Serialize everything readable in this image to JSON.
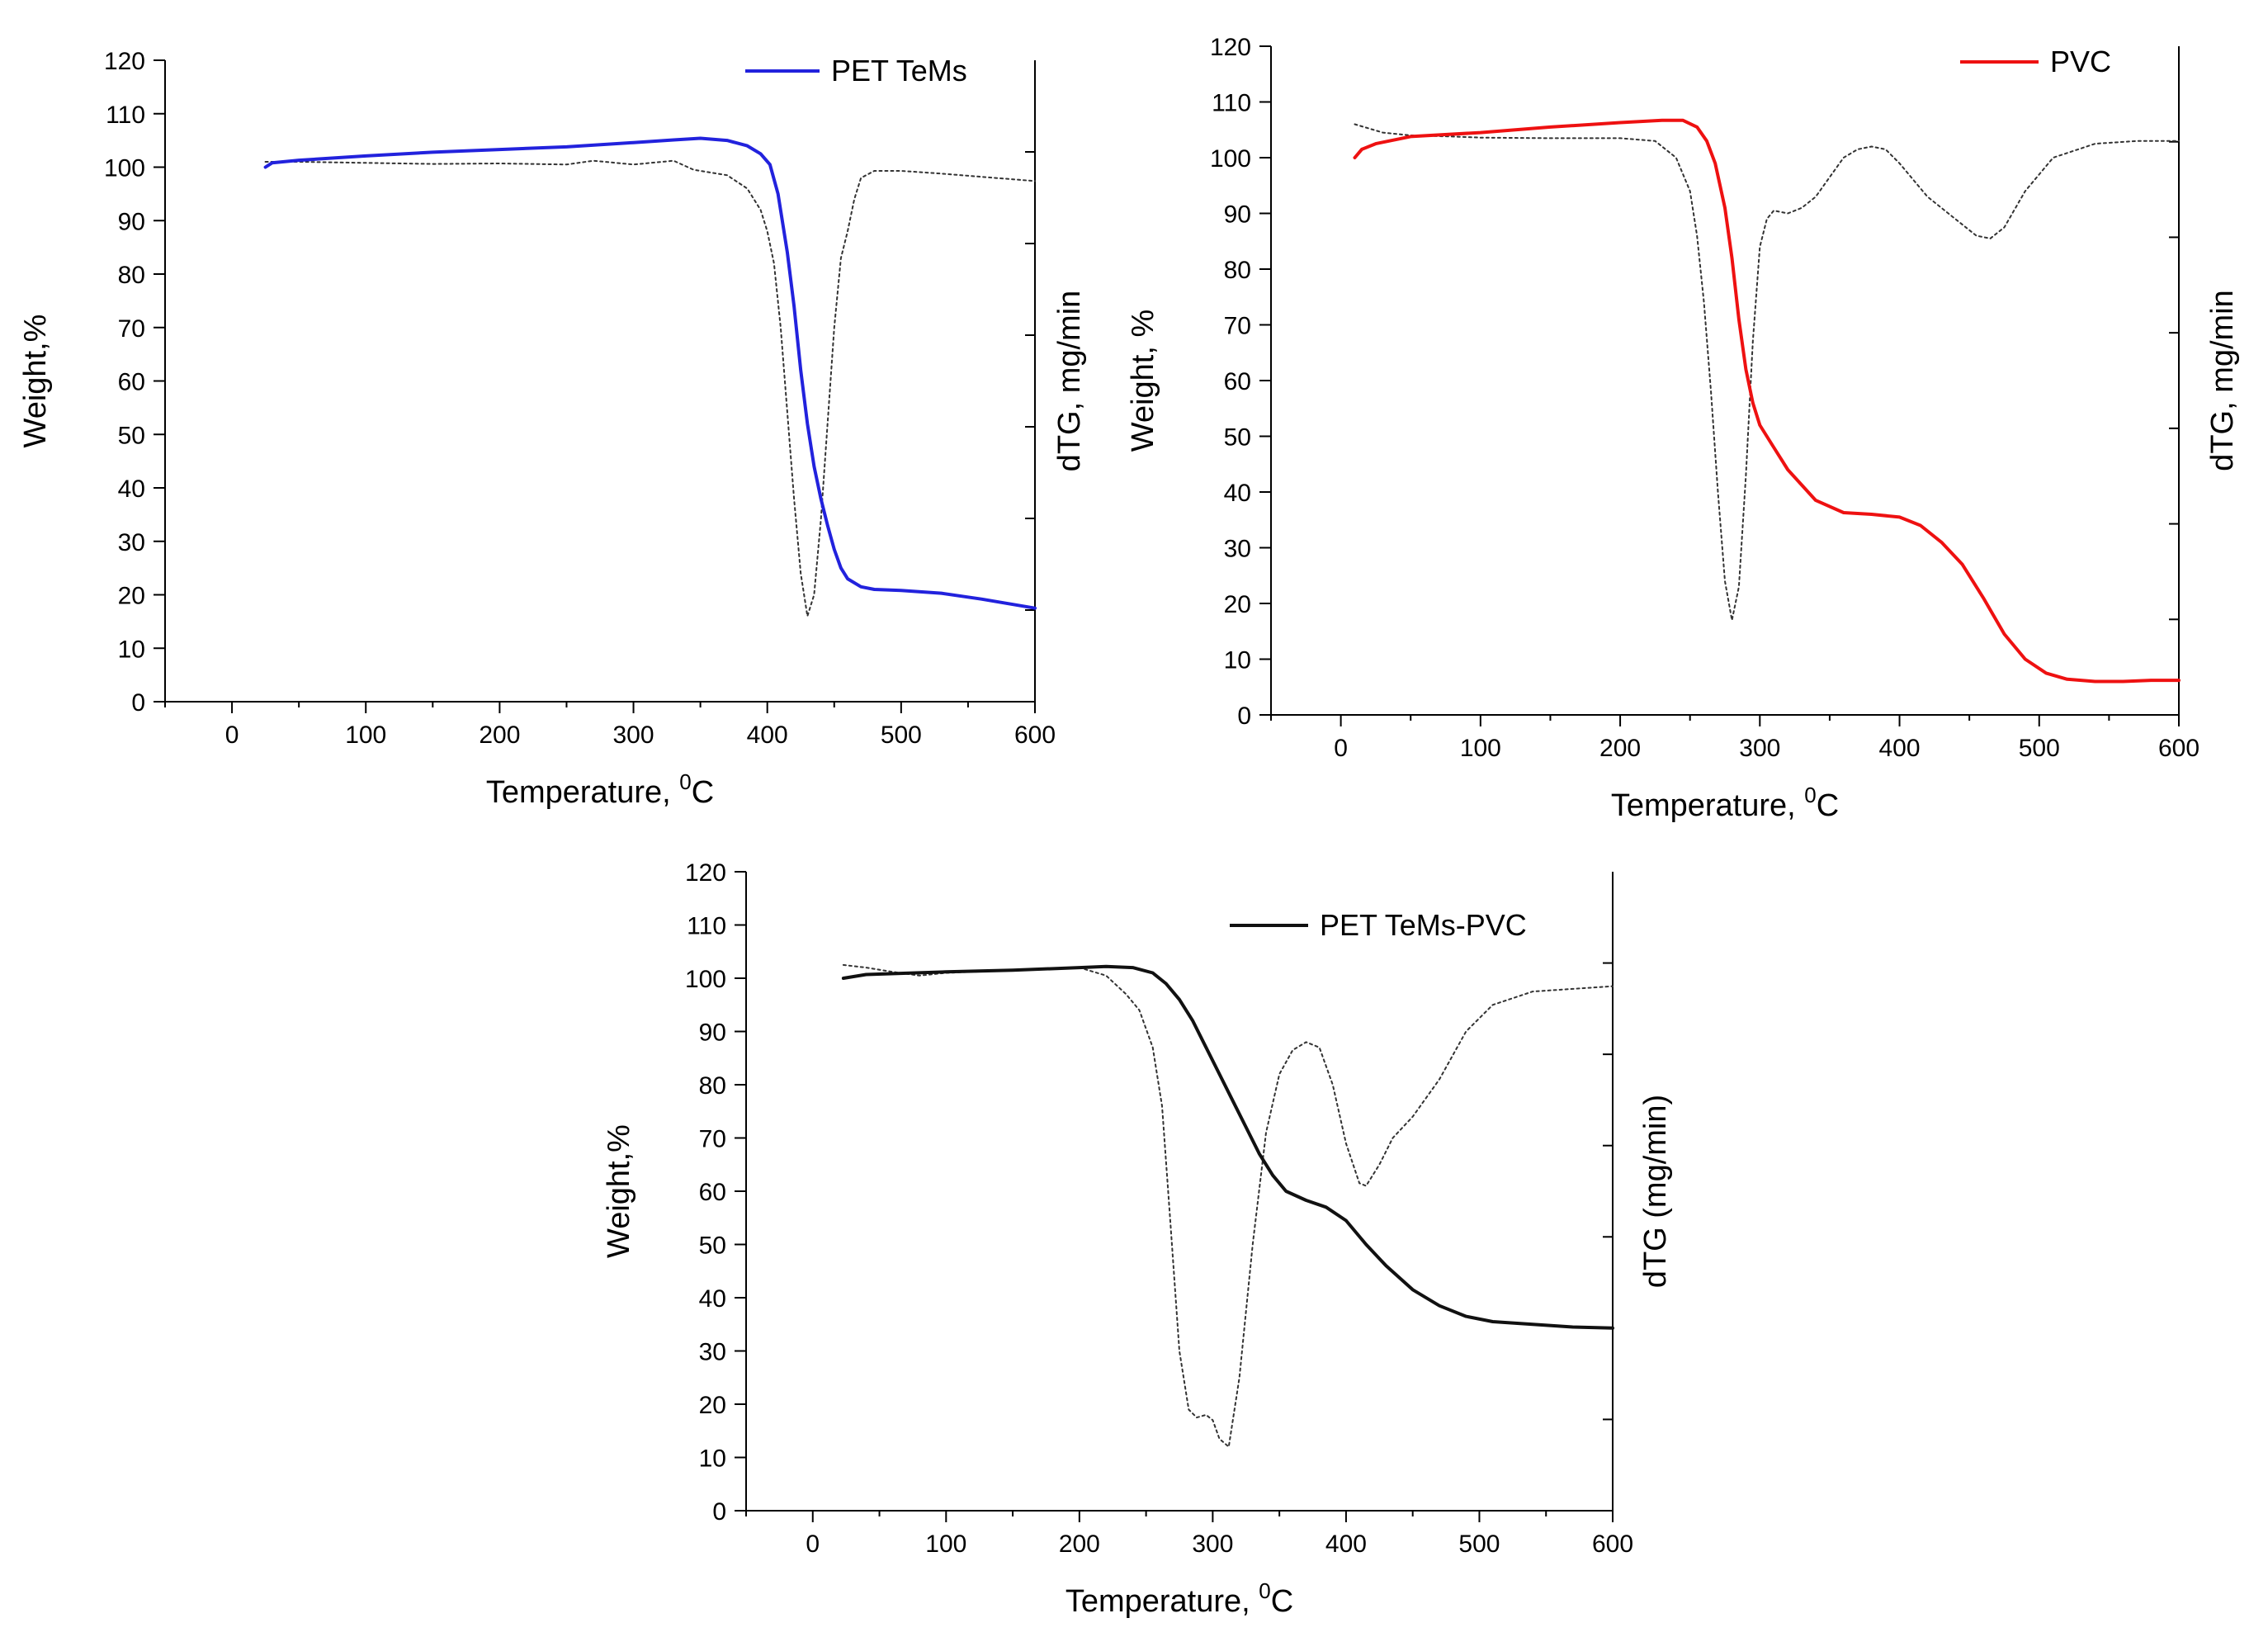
{
  "chart_data": [
    {
      "id": "pet",
      "type": "line",
      "title": "",
      "xlabel": "Temperature, ",
      "xlabel_sup": "0",
      "xlabel_suffix": "C",
      "ylabel": "Weight,%",
      "y2label": "dTG, mg/min",
      "xlim": [
        -50,
        600
      ],
      "ylim": [
        0,
        120
      ],
      "xticks": [
        0,
        100,
        200,
        300,
        400,
        500,
        600
      ],
      "yticks": [
        0,
        10,
        20,
        30,
        40,
        50,
        60,
        70,
        80,
        90,
        100,
        110,
        120
      ],
      "grid": false,
      "legend_position": "top-right",
      "series": [
        {
          "name": "PET TeMs",
          "role": "TG",
          "color": "#2222dd",
          "style": "solid",
          "x": [
            25,
            30,
            50,
            100,
            150,
            200,
            250,
            300,
            330,
            350,
            370,
            385,
            395,
            402,
            408,
            415,
            420,
            425,
            430,
            435,
            440,
            445,
            450,
            455,
            460,
            470,
            480,
            500,
            530,
            560,
            600
          ],
          "y": [
            100,
            100.8,
            101.3,
            102.1,
            102.8,
            103.3,
            103.8,
            104.6,
            105.1,
            105.4,
            105,
            104,
            102.5,
            100.5,
            95,
            84,
            74,
            62,
            52,
            44,
            38,
            33,
            28.5,
            25,
            23,
            21.5,
            21,
            20.8,
            20.3,
            19.2,
            17.5
          ]
        },
        {
          "name": "dTG",
          "role": "dTG",
          "color": "#333333",
          "style": "dotted",
          "x": [
            25,
            50,
            100,
            150,
            200,
            250,
            270,
            300,
            330,
            345,
            370,
            385,
            395,
            400,
            405,
            410,
            415,
            420,
            425,
            430,
            435,
            440,
            445,
            450,
            455,
            460,
            465,
            470,
            480,
            500,
            530,
            560,
            600
          ],
          "y": [
            101,
            101,
            100.8,
            100.6,
            100.7,
            100.5,
            101.2,
            100.5,
            101.2,
            99.5,
            98.5,
            96,
            92,
            88,
            82,
            70,
            54,
            38,
            24,
            16,
            20,
            34,
            52,
            70,
            83,
            88,
            94,
            98,
            99.3,
            99.3,
            98.8,
            98.2,
            97.4
          ]
        }
      ]
    },
    {
      "id": "pvc",
      "type": "line",
      "title": "",
      "xlabel": "Temperature, ",
      "xlabel_sup": "0",
      "xlabel_suffix": "C",
      "ylabel": "Weight, %",
      "y2label": "dTG, mg/min",
      "xlim": [
        -50,
        600
      ],
      "ylim": [
        0,
        120
      ],
      "xticks": [
        0,
        100,
        200,
        300,
        400,
        500,
        600
      ],
      "yticks": [
        0,
        10,
        20,
        30,
        40,
        50,
        60,
        70,
        80,
        90,
        100,
        110,
        120
      ],
      "grid": false,
      "legend_position": "top-right",
      "series": [
        {
          "name": "PVC",
          "role": "TG",
          "color": "#ee1111",
          "style": "solid",
          "x": [
            10,
            15,
            25,
            50,
            100,
            150,
            200,
            230,
            245,
            255,
            262,
            268,
            275,
            280,
            285,
            290,
            295,
            300,
            310,
            320,
            340,
            360,
            380,
            400,
            415,
            430,
            445,
            460,
            475,
            490,
            505,
            520,
            540,
            560,
            580,
            600
          ],
          "y": [
            100,
            101.5,
            102.5,
            103.8,
            104.5,
            105.5,
            106.3,
            106.7,
            106.7,
            105.5,
            103,
            99,
            91,
            82,
            71,
            62,
            56,
            52,
            48,
            44,
            38.5,
            36.3,
            36,
            35.5,
            34,
            31,
            27,
            21,
            14.5,
            10,
            7.5,
            6.4,
            6,
            6,
            6.2,
            6.2
          ]
        },
        {
          "name": "dTG",
          "role": "dTG",
          "color": "#333333",
          "style": "dotted",
          "x": [
            10,
            30,
            50,
            80,
            100,
            150,
            200,
            225,
            240,
            250,
            255,
            260,
            265,
            270,
            275,
            280,
            285,
            290,
            295,
            300,
            305,
            310,
            320,
            330,
            340,
            350,
            360,
            370,
            380,
            390,
            400,
            420,
            440,
            455,
            465,
            475,
            490,
            510,
            540,
            570,
            600
          ],
          "y": [
            106,
            104.5,
            104,
            103.8,
            103.6,
            103.5,
            103.5,
            103,
            100,
            94,
            86,
            74,
            58,
            40,
            24,
            17,
            23,
            43,
            67,
            84,
            89,
            90.5,
            90,
            91,
            93,
            96.5,
            100,
            101.5,
            102,
            101.5,
            99,
            93,
            89,
            86,
            85.5,
            87.5,
            94,
            100,
            102.5,
            103,
            103
          ]
        }
      ]
    },
    {
      "id": "mix",
      "type": "line",
      "title": "",
      "xlabel": "Temperature, ",
      "xlabel_sup": "0",
      "xlabel_suffix": "C",
      "ylabel": "Weight,%",
      "y2label": "dTG (mg/min)",
      "xlim": [
        -50,
        600
      ],
      "ylim": [
        0,
        120
      ],
      "xticks": [
        0,
        100,
        200,
        300,
        400,
        500,
        600
      ],
      "yticks": [
        0,
        10,
        20,
        30,
        40,
        50,
        60,
        70,
        80,
        90,
        100,
        110,
        120
      ],
      "grid": false,
      "legend_position": "top-right",
      "series": [
        {
          "name": "PET TeMs-PVC",
          "role": "TG",
          "color": "#111111",
          "style": "solid",
          "x": [
            23,
            40,
            100,
            150,
            200,
            220,
            240,
            255,
            265,
            275,
            285,
            295,
            305,
            315,
            325,
            335,
            345,
            355,
            370,
            385,
            400,
            415,
            430,
            450,
            470,
            490,
            510,
            540,
            570,
            600
          ],
          "y": [
            100,
            100.7,
            101.2,
            101.5,
            102,
            102.2,
            102,
            101,
            99,
            96,
            92,
            87,
            82,
            77,
            72,
            67,
            63,
            60,
            58.3,
            57,
            54.5,
            50,
            46,
            41.5,
            38.5,
            36.5,
            35.5,
            35,
            34.5,
            34.3
          ]
        },
        {
          "name": "dTG",
          "role": "dTG",
          "color": "#333333",
          "style": "dotted",
          "x": [
            23,
            40,
            60,
            80,
            100,
            150,
            200,
            220,
            235,
            245,
            255,
            262,
            268,
            275,
            282,
            288,
            295,
            300,
            305,
            312,
            320,
            330,
            340,
            350,
            360,
            370,
            380,
            390,
            400,
            410,
            415,
            425,
            435,
            450,
            470,
            490,
            510,
            540,
            570,
            600
          ],
          "y": [
            102.5,
            102,
            101.2,
            100.5,
            101,
            101.5,
            102,
            100.5,
            97,
            94,
            87,
            76,
            55,
            30,
            19,
            17.5,
            18,
            17,
            13.5,
            12,
            25,
            50,
            71,
            82,
            86.5,
            88,
            87,
            80,
            69,
            61.5,
            61,
            65,
            70,
            74,
            81,
            90,
            95,
            97.5,
            98,
            98.5
          ]
        }
      ]
    }
  ]
}
